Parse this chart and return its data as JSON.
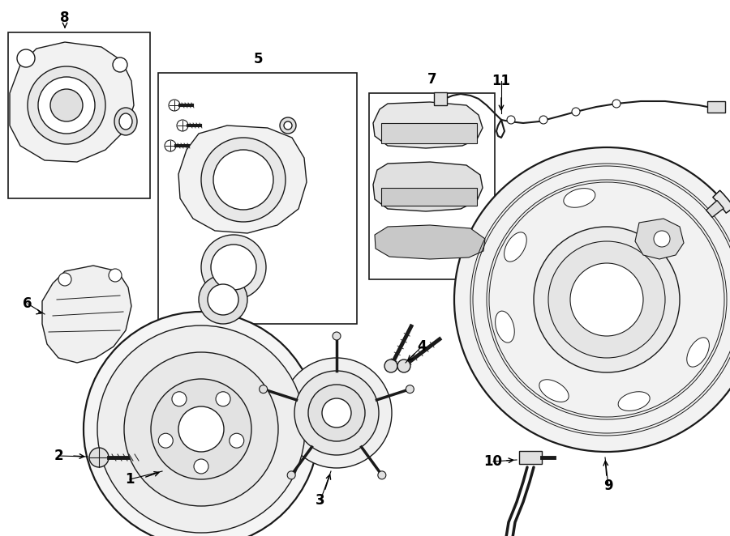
{
  "background": "#ffffff",
  "line_color": "#1a1a1a",
  "lw": 1.0,
  "lw_thick": 1.6,
  "label_fontsize": 12,
  "label_fontweight": "bold",
  "figw": 9.0,
  "figh": 6.62,
  "dpi": 100
}
